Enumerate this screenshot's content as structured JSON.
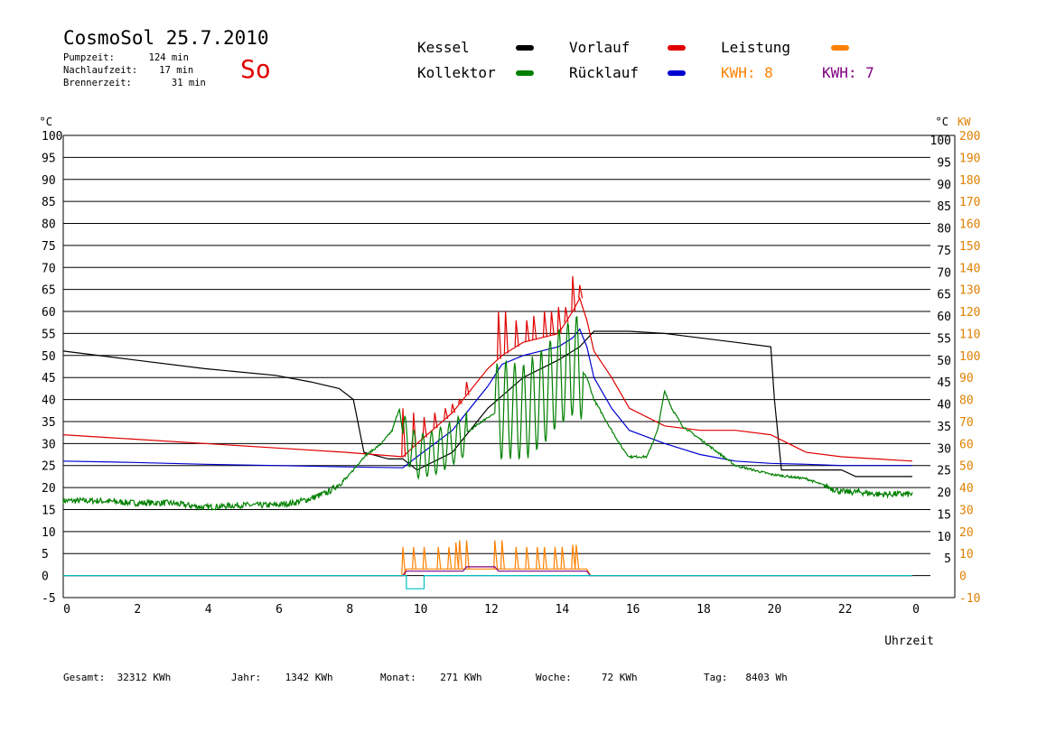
{
  "header": {
    "title": "CosmoSol 25.7.2010",
    "day": "So",
    "info": [
      {
        "label": "Pumpzeit:",
        "value": "124 min"
      },
      {
        "label": "Nachlaufzeit:",
        "value": "17 min"
      },
      {
        "label": "Brennerzeit:",
        "value": "31 min"
      }
    ]
  },
  "legend": {
    "kessel": {
      "label": "Kessel",
      "color": "#000000"
    },
    "kollektor": {
      "label": "Kollektor",
      "color": "#008000"
    },
    "vorlauf": {
      "label": "Vorlauf",
      "color": "#e00000"
    },
    "ruecklauf": {
      "label": "Rücklauf",
      "color": "#0000d0"
    },
    "leistung": {
      "label": "Leistung",
      "color": "#ff8000"
    },
    "kwh_orange": "KWH: 8",
    "kwh_purple": "KWH: 7",
    "purple_color": "#800080"
  },
  "footer": [
    {
      "label": "Gesamt:",
      "value": "32312 KWh"
    },
    {
      "label": "Jahr:",
      "value": "1342 KWh"
    },
    {
      "label": "Monat:",
      "value": "271 KWh"
    },
    {
      "label": "Woche:",
      "value": "72 KWh"
    },
    {
      "label": "Tag:",
      "value": "8403 Wh"
    }
  ],
  "chart_data": {
    "type": "line",
    "xlabel": "Uhrzeit",
    "xlim": [
      0,
      24
    ],
    "xticks": [
      "0",
      "2",
      "4",
      "6",
      "8",
      "10",
      "12",
      "14",
      "16",
      "18",
      "20",
      "22",
      "0"
    ],
    "ylim_left": [
      -5,
      100
    ],
    "yunit_left": "°C",
    "yticks_left": [
      "100",
      "95",
      "90",
      "85",
      "80",
      "75",
      "70",
      "65",
      "60",
      "55",
      "50",
      "45",
      "40",
      "35",
      "30",
      "25",
      "20",
      "15",
      "10",
      "5",
      "0",
      "-5"
    ],
    "yunit_right": "°C",
    "yticks_right": [
      "100",
      "95",
      "90",
      "85",
      "80",
      "75",
      "70",
      "65",
      "60",
      "55",
      "50",
      "45",
      "40",
      "35",
      "30",
      "25",
      "20",
      "15",
      "10",
      "5"
    ],
    "y2unit": "KW",
    "y2ticks": [
      "200",
      "190",
      "180",
      "170",
      "160",
      "150",
      "140",
      "130",
      "120",
      "110",
      "100",
      "90",
      "80",
      "70",
      "60",
      "50",
      "40",
      "30",
      "20",
      "10",
      "0",
      "-10"
    ],
    "grid": true,
    "series": [
      {
        "name": "Kessel",
        "color": "#000000",
        "x": [
          0,
          2,
          4,
          6,
          7,
          7.8,
          8.2,
          8.5,
          9.2,
          9.6,
          10,
          11,
          12,
          13,
          14,
          14.6,
          15,
          16,
          17,
          18,
          19,
          20,
          20.1,
          20.3,
          20.6,
          22,
          22.4,
          22.7,
          24
        ],
        "y": [
          51,
          49,
          47,
          45.5,
          44,
          42.5,
          40,
          28,
          26.5,
          26.5,
          24,
          28,
          38,
          45,
          49,
          52,
          55.5,
          55.5,
          55,
          54,
          53,
          52,
          40,
          24,
          24,
          24,
          22.5,
          22.5,
          22.5
        ]
      },
      {
        "name": "Vorlauf",
        "color": "#e00000",
        "x": [
          0,
          2,
          4,
          6,
          8,
          9.6,
          10,
          11,
          11.3,
          12,
          12.4,
          13,
          14,
          14.4,
          14.6,
          14.8,
          15,
          15.5,
          16,
          17,
          18,
          19,
          20,
          20.5,
          21,
          22,
          23,
          24
        ],
        "y": [
          32,
          31,
          30,
          29,
          28,
          27,
          30,
          37,
          40,
          47,
          50,
          53,
          55,
          60,
          63,
          58,
          51,
          45,
          38,
          34,
          33,
          33,
          32,
          30,
          28,
          27,
          26.5,
          26
        ],
        "spikes": [
          [
            9.6,
            38
          ],
          [
            9.9,
            37
          ],
          [
            10.2,
            36
          ],
          [
            10.5,
            37
          ],
          [
            10.8,
            38
          ],
          [
            11.0,
            39
          ],
          [
            11.2,
            40
          ],
          [
            11.4,
            44
          ],
          [
            12.3,
            60
          ],
          [
            12.5,
            60
          ],
          [
            12.8,
            58
          ],
          [
            13.1,
            58
          ],
          [
            13.3,
            59
          ],
          [
            13.6,
            60
          ],
          [
            13.8,
            60
          ],
          [
            14.0,
            61
          ],
          [
            14.2,
            61
          ],
          [
            14.4,
            68
          ],
          [
            14.6,
            66
          ]
        ]
      },
      {
        "name": "Rücklauf",
        "color": "#0000d0",
        "x": [
          0,
          2,
          4,
          6,
          8,
          9.6,
          10,
          11,
          12,
          12.4,
          13,
          14,
          14.4,
          14.6,
          14.8,
          15,
          15.5,
          16,
          17,
          18,
          19,
          20,
          21,
          22,
          23,
          24
        ],
        "y": [
          26,
          25.7,
          25.3,
          25,
          24.7,
          24.5,
          27,
          33,
          43,
          48,
          50,
          52,
          54,
          56,
          52,
          45,
          38,
          33,
          30,
          27.5,
          26,
          25.5,
          25.3,
          25,
          25,
          25
        ]
      },
      {
        "name": "Kollektor",
        "color": "#008000",
        "x": [
          0,
          1,
          2,
          3,
          4,
          5,
          6,
          6.5,
          7,
          7.5,
          8,
          8.5,
          9,
          9.3,
          9.5,
          9.6,
          10,
          10.5,
          11,
          11.5,
          12,
          12.5,
          13,
          13.5,
          14,
          14.5,
          14.8,
          15,
          15.5,
          15.8,
          16,
          16.5,
          16.8,
          17,
          17.2,
          17.5,
          18,
          19,
          20,
          21,
          22,
          22.5,
          23,
          24
        ],
        "y": [
          17,
          17,
          16.5,
          16.5,
          15.5,
          16,
          16,
          16.5,
          17.5,
          19,
          22,
          27,
          30,
          33,
          38,
          32,
          27,
          28,
          30,
          33,
          36,
          38,
          37,
          40,
          45,
          48,
          45,
          40,
          33,
          29,
          27,
          27,
          33,
          42,
          38,
          34,
          31,
          25,
          23,
          22,
          19,
          19,
          18.5,
          18.5
        ],
        "osc": [
          [
            9.6,
            11.4,
            5
          ],
          [
            12.2,
            14.7,
            11
          ]
        ]
      },
      {
        "name": "Leistung",
        "color": "#ff8000",
        "y_axis": "right",
        "x": [
          0,
          9.6,
          9.7,
          14.8,
          14.9,
          24
        ],
        "y": [
          0,
          0,
          3,
          3,
          0,
          0
        ],
        "spikes": [
          [
            9.6,
            13
          ],
          [
            9.9,
            13
          ],
          [
            10.2,
            13
          ],
          [
            10.6,
            13
          ],
          [
            10.9,
            13
          ],
          [
            11.1,
            15
          ],
          [
            11.2,
            16
          ],
          [
            11.4,
            16
          ],
          [
            12.2,
            16
          ],
          [
            12.4,
            16
          ],
          [
            12.8,
            13
          ],
          [
            13.1,
            13
          ],
          [
            13.4,
            13
          ],
          [
            13.6,
            13
          ],
          [
            13.9,
            13
          ],
          [
            14.1,
            13
          ],
          [
            14.4,
            14
          ],
          [
            14.5,
            14
          ]
        ]
      },
      {
        "name": "KWH: 7",
        "color": "#800080",
        "y_axis": "right",
        "x": [
          0,
          9.6,
          9.7,
          11.3,
          11.4,
          12.2,
          12.3,
          14.8,
          14.9,
          24
        ],
        "y": [
          0,
          0,
          2,
          2,
          4,
          4,
          2,
          2,
          0,
          0
        ]
      },
      {
        "color": "#00c0c0",
        "y_axis": "right",
        "x": [
          0,
          9.7,
          9.7,
          10.2,
          10.2,
          24
        ],
        "y": [
          0,
          0,
          -6,
          -6,
          0,
          0
        ]
      }
    ]
  }
}
